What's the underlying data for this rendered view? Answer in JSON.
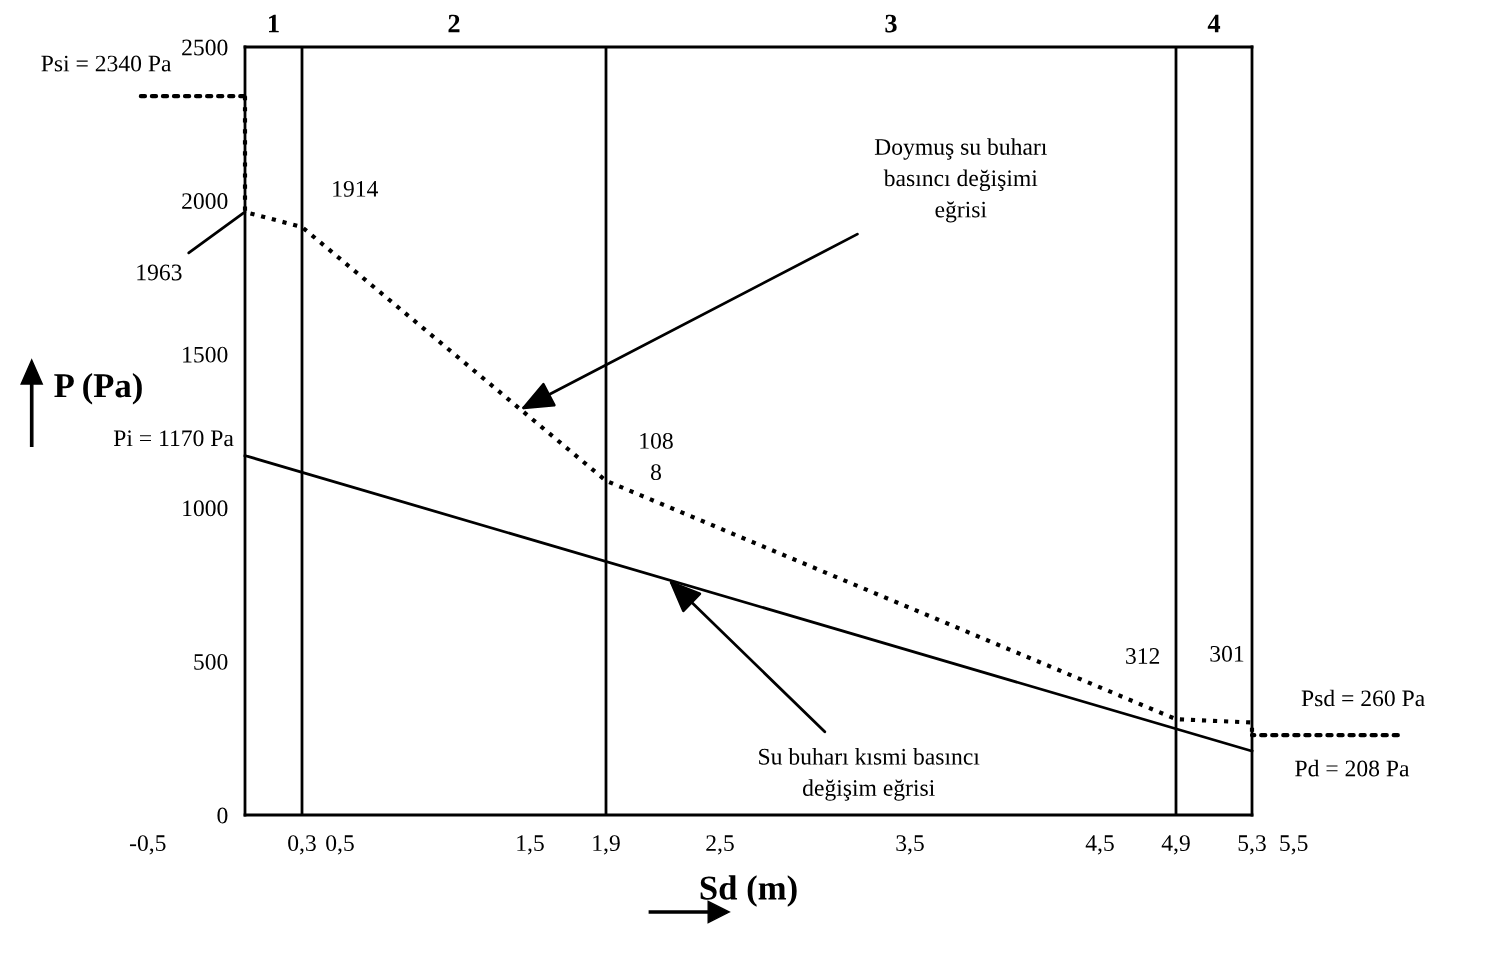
{
  "chart_data": {
    "type": "line",
    "xlabel": "Sd (m)",
    "ylabel": "P (Pa)",
    "xlim": [
      0,
      5.3
    ],
    "ylim": [
      0,
      2500
    ],
    "xticks": [
      {
        "value": 0.3,
        "label": "0,3"
      },
      {
        "value": 0.5,
        "label": "0,5"
      },
      {
        "value": 1.5,
        "label": "1,5"
      },
      {
        "value": 1.9,
        "label": "1,9"
      },
      {
        "value": 2.5,
        "label": "2,5"
      },
      {
        "value": 3.5,
        "label": "3,5"
      },
      {
        "value": 4.5,
        "label": "4,5"
      },
      {
        "value": 4.9,
        "label": "4,9"
      },
      {
        "value": 5.3,
        "label": "5,3"
      }
    ],
    "yticks": [
      0,
      500,
      1000,
      1500,
      2000,
      2500
    ],
    "series": [
      {
        "color": "#000000",
        "line_style": "dotted",
        "x": [
          0,
          0,
          0.3,
          1.9,
          4.9,
          5.3,
          5.3
        ],
        "values": [
          2340,
          1963,
          1914,
          1088,
          312,
          301,
          260
        ]
      },
      {
        "color": "#000000",
        "line_style": "solid",
        "x": [
          0,
          5.3
        ],
        "values": [
          1170,
          208
        ]
      }
    ],
    "ref_lines": [
      {
        "axis": "x",
        "value": 0.3
      },
      {
        "axis": "x",
        "value": 1.9
      },
      {
        "axis": "x",
        "value": 4.9
      }
    ],
    "annotations": [
      "1",
      "2",
      "3",
      "4",
      "-0,5",
      "5,5",
      {
        "text": "Psi = 2340 Pa",
        "x": 0,
        "y": 2340
      },
      {
        "text": "1963",
        "x": 0,
        "y": 1963
      },
      {
        "text": "1914",
        "x": 0.3,
        "y": 1914
      },
      {
        "text": "108\n8",
        "x": 1.9,
        "y": 1088
      },
      {
        "text": "312",
        "x": 4.9,
        "y": 312
      },
      {
        "text": "301",
        "x": 5.3,
        "y": 301
      },
      {
        "text": "Pi = 1170 Pa",
        "x": 0,
        "y": 1170
      },
      {
        "text": "Psd = 260 Pa",
        "x": 5.3,
        "y": 260
      },
      {
        "text": "Pd = 208 Pa",
        "x": 5.3,
        "y": 208
      },
      {
        "text": "Doymuş su buharı\nbasıncı değişimi\neğrisi",
        "x": 1.45,
        "y": 1320
      },
      {
        "text": "Su buharı kısmi basıncı\ndeğişim eğrisi",
        "x": 2.23,
        "y": 765
      }
    ]
  }
}
